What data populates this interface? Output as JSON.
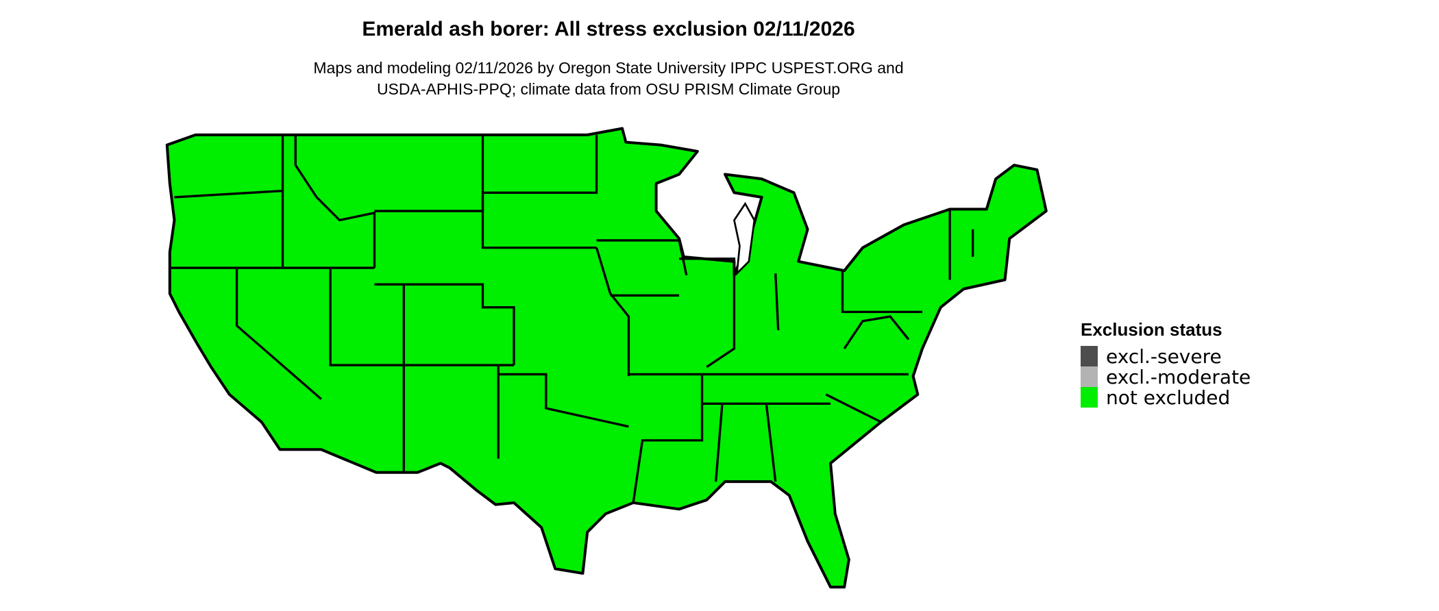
{
  "title": "Emerald ash borer: All stress exclusion 02/11/2026",
  "subtitle_line1": "Maps and modeling 02/11/2026 by Oregon State University IPPC USPEST.ORG and",
  "subtitle_line2": "USDA-APHIS-PPQ; climate data from OSU PRISM Climate Group",
  "map": {
    "region": "Contiguous United States",
    "fill_status": "not excluded",
    "state_border_color": "#000000"
  },
  "legend": {
    "title": "Exclusion status",
    "items": [
      {
        "label": "excl.-severe",
        "color": "#4d4d4d"
      },
      {
        "label": "excl.-moderate",
        "color": "#b3b3b3"
      },
      {
        "label": "not excluded",
        "color": "#00ee00"
      }
    ]
  }
}
